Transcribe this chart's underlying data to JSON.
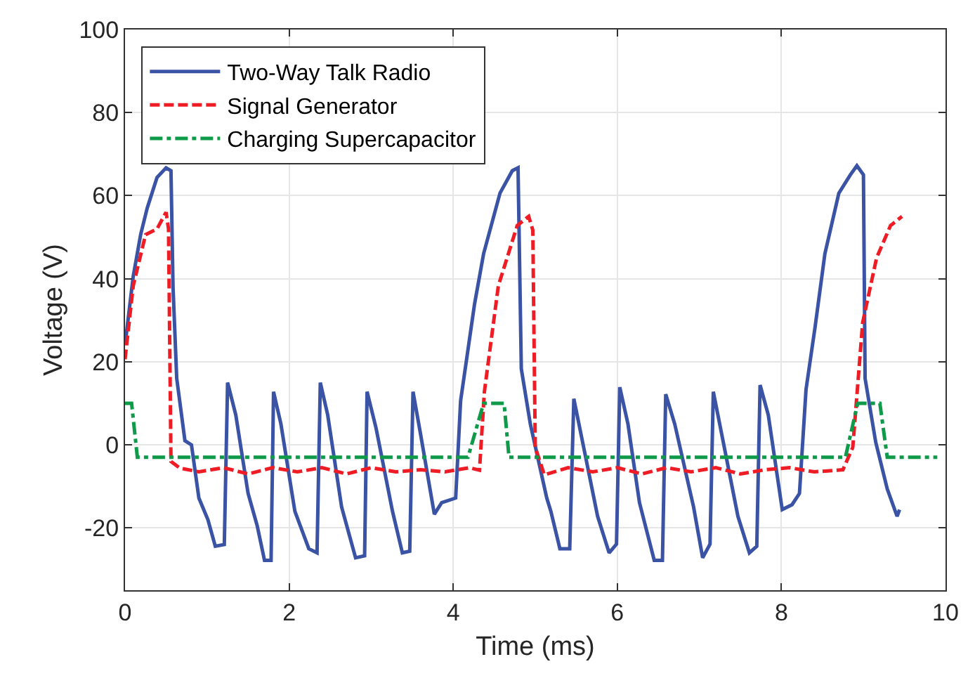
{
  "chart_data": {
    "type": "line",
    "xlabel": "Time (ms)",
    "ylabel": "Voltage (V)",
    "xlim": [
      0,
      10
    ],
    "xticks": [
      0,
      2,
      4,
      6,
      8,
      10
    ],
    "ylim": [
      -35,
      100
    ],
    "yticks": [
      -20,
      0,
      20,
      40,
      60,
      80,
      100
    ],
    "grid": true,
    "legend": "top left",
    "series": [
      {
        "name": "Two-Way Talk Radio",
        "color": "#3a53a4",
        "line_style": "solid",
        "x": [
          0,
          0.1,
          0.19,
          0.27,
          0.39,
          0.5,
          0.56,
          0.585,
          0.63,
          0.73,
          0.81,
          0.9,
          1.01,
          1.1,
          1.21,
          1.25,
          1.35,
          1.5,
          1.61,
          1.7,
          1.78,
          1.81,
          1.9,
          2.07,
          2.24,
          2.34,
          2.38,
          2.47,
          2.64,
          2.81,
          2.92,
          2.95,
          3.06,
          3.26,
          3.38,
          3.47,
          3.51,
          3.6,
          3.77,
          3.86,
          4.03,
          4.09,
          4.26,
          4.37,
          4.57,
          4.72,
          4.79,
          4.83,
          4.94,
          5.14,
          5.19,
          5.3,
          5.42,
          5.47,
          5.59,
          5.76,
          5.9,
          5.99,
          6.03,
          6.13,
          6.27,
          6.45,
          6.55,
          6.59,
          6.7,
          6.93,
          7.04,
          7.13,
          7.17,
          7.27,
          7.47,
          7.61,
          7.7,
          7.74,
          7.84,
          8.01,
          8.13,
          8.22,
          8.3,
          8.41,
          8.53,
          8.7,
          8.84,
          8.92,
          9.0,
          9.02,
          9.15,
          9.29,
          9.41,
          9.44
        ],
        "values": [
          24,
          40.6,
          50.6,
          57,
          64.4,
          66.7,
          66,
          38,
          16,
          1,
          0,
          -12.8,
          -18,
          -24.4,
          -24,
          15,
          7.2,
          -11.7,
          -19.4,
          -27.8,
          -27.8,
          12.8,
          5,
          -16,
          -25,
          -26,
          15,
          7.2,
          -15,
          -27.2,
          -26.7,
          12.8,
          4,
          -16,
          -26,
          -25.6,
          12.8,
          2.8,
          -16.7,
          -13.9,
          -12.8,
          10.6,
          33.9,
          46,
          60.6,
          66,
          66.7,
          18.3,
          5,
          -12.8,
          -16,
          -25,
          -25,
          11.1,
          -0.6,
          -17.2,
          -26,
          -23.9,
          13.9,
          5,
          -13.9,
          -27.8,
          -27.8,
          12.2,
          5,
          -15,
          -27.2,
          -23.9,
          12.8,
          2.8,
          -17.2,
          -26,
          -24.4,
          14.4,
          7.2,
          -15.6,
          -14.4,
          -11.7,
          13.3,
          28.3,
          46,
          60.6,
          65,
          67.2,
          65,
          16,
          0.6,
          -10.6,
          -17.2,
          -15.6
        ]
      },
      {
        "name": "Signal Generator",
        "color": "#ee1c25",
        "line_style": "dashed",
        "x": [
          0,
          0.1,
          0.25,
          0.39,
          0.5,
          0.53,
          0.56,
          0.67,
          0.9,
          1.2,
          1.5,
          1.8,
          2.1,
          2.4,
          2.7,
          3.0,
          3.3,
          3.6,
          3.9,
          4.2,
          4.32,
          4.38,
          4.55,
          4.78,
          4.92,
          4.97,
          5.0,
          5.11,
          5.4,
          5.7,
          6.0,
          6.3,
          6.6,
          6.9,
          7.2,
          7.5,
          7.8,
          8.1,
          8.4,
          8.75,
          8.87,
          8.99,
          9.16,
          9.33,
          9.47
        ],
        "values": [
          20.6,
          38.3,
          50.6,
          52,
          56,
          52,
          -4,
          -5.6,
          -6.5,
          -5.5,
          -7,
          -5.5,
          -6.5,
          -5.5,
          -7,
          -5.5,
          -6.5,
          -6,
          -6.5,
          -5.5,
          -6.1,
          12.8,
          38.3,
          52.8,
          55,
          51.7,
          -0.6,
          -7.2,
          -5.5,
          -6.5,
          -5.5,
          -7,
          -5.5,
          -6.5,
          -5.5,
          -7,
          -6,
          -5.5,
          -6.5,
          -6,
          -0.6,
          29.4,
          45,
          52.8,
          55
        ]
      },
      {
        "name": "Charging Supercapacitor",
        "color": "#0e9a48",
        "line_style": "dashdot",
        "x": [
          0,
          0.08,
          0.15,
          4.18,
          4.37,
          4.62,
          4.68,
          8.78,
          8.93,
          9.2,
          9.29,
          9.9
        ],
        "values": [
          10,
          10,
          -3,
          -3,
          10,
          10,
          -3,
          -3,
          10,
          10,
          -3,
          -3
        ]
      }
    ]
  }
}
